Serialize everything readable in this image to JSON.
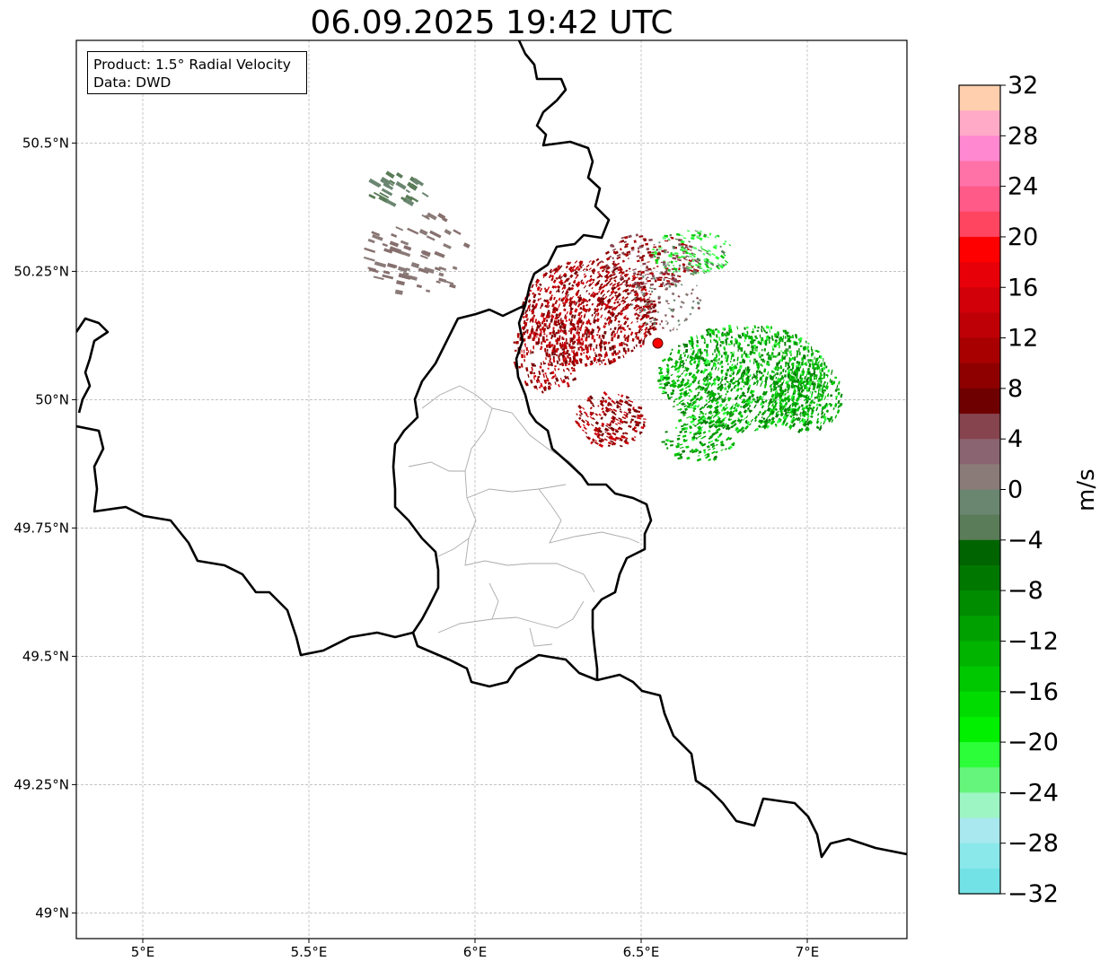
{
  "title": "06.09.2025 19:42 UTC",
  "info": {
    "product": "Product: 1.5° Radial Velocity",
    "source": "Data: DWD"
  },
  "map": {
    "lon_range": [
      4.8,
      7.3
    ],
    "lat_range": [
      48.95,
      50.7
    ],
    "lon_ticks": [
      {
        "value": 5.0,
        "label": "5°E"
      },
      {
        "value": 5.5,
        "label": "5.5°E"
      },
      {
        "value": 6.0,
        "label": "6°E"
      },
      {
        "value": 6.5,
        "label": "6.5°E"
      },
      {
        "value": 7.0,
        "label": "7°E"
      }
    ],
    "lat_ticks": [
      {
        "value": 49.0,
        "label": "49°N"
      },
      {
        "value": 49.25,
        "label": "49.25°N"
      },
      {
        "value": 49.5,
        "label": "49.5°N"
      },
      {
        "value": 49.75,
        "label": "49.75°N"
      },
      {
        "value": 50.0,
        "label": "50°N"
      },
      {
        "value": 50.25,
        "label": "50.25°N"
      },
      {
        "value": 50.5,
        "label": "50.5°N"
      }
    ],
    "radar_site": {
      "lon": 6.55,
      "lat": 50.11,
      "color": "#ff0000"
    },
    "grid": true,
    "border_color": "#000000",
    "region_line_color": "#aaaaaa"
  },
  "colorbar": {
    "unit": "m/s",
    "min": -32,
    "max": 32,
    "tick_labels": [
      {
        "value": 32,
        "label": "32"
      },
      {
        "value": 28,
        "label": "28"
      },
      {
        "value": 24,
        "label": "24"
      },
      {
        "value": 20,
        "label": "20"
      },
      {
        "value": 16,
        "label": "16"
      },
      {
        "value": 12,
        "label": "12"
      },
      {
        "value": 8,
        "label": "8"
      },
      {
        "value": 4,
        "label": "4"
      },
      {
        "value": 0,
        "label": "0"
      },
      {
        "value": -4,
        "label": "−4"
      },
      {
        "value": -8,
        "label": "−8"
      },
      {
        "value": -12,
        "label": "−12"
      },
      {
        "value": -16,
        "label": "−16"
      },
      {
        "value": -20,
        "label": "−20"
      },
      {
        "value": -24,
        "label": "−24"
      },
      {
        "value": -28,
        "label": "−28"
      },
      {
        "value": -32,
        "label": "−32"
      }
    ],
    "colors_top_to_bottom": [
      "#ffcfae",
      "#ffaac7",
      "#ff88d0",
      "#ff72a8",
      "#ff5a88",
      "#ff4560",
      "#ff0000",
      "#e80008",
      "#d20008",
      "#be0006",
      "#a80000",
      "#8e0000",
      "#6e0000",
      "#86444e",
      "#8a6470",
      "#8a7a78",
      "#6a8670",
      "#5a7c58",
      "#006400",
      "#007800",
      "#008c00",
      "#00a000",
      "#00b400",
      "#00c800",
      "#00dc00",
      "#00f000",
      "#2cff3a",
      "#66f57c",
      "#9ef5c4",
      "#a8e8ee",
      "#8ae8ea",
      "#72e2e6"
    ]
  }
}
